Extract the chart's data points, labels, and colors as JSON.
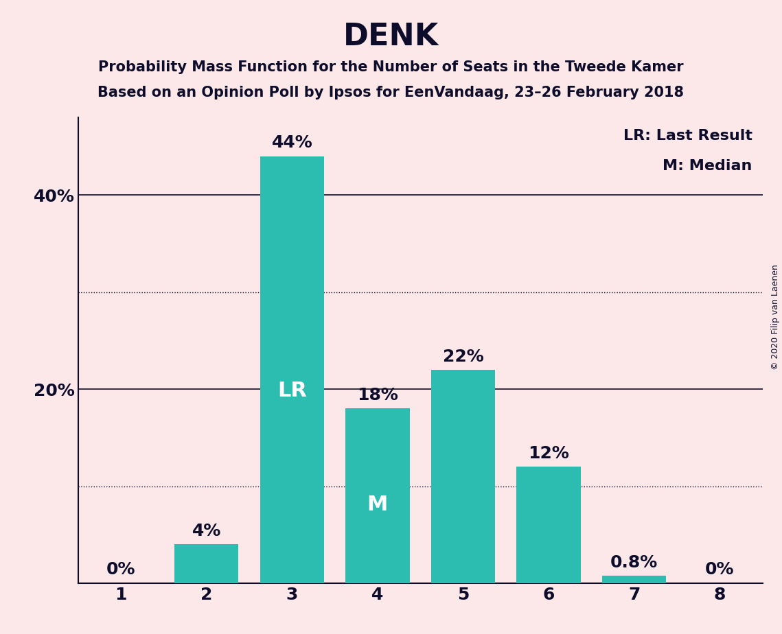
{
  "title": "DENK",
  "subtitle_line1": "Probability Mass Function for the Number of Seats in the Tweede Kamer",
  "subtitle_line2": "Based on an Opinion Poll by Ipsos for EenVandaag, 23–26 February 2018",
  "categories": [
    1,
    2,
    3,
    4,
    5,
    6,
    7,
    8
  ],
  "values": [
    0.0,
    4.0,
    44.0,
    18.0,
    22.0,
    12.0,
    0.8,
    0.0
  ],
  "bar_color": "#2dbdb0",
  "background_color": "#fce8e8",
  "text_color": "#0d0d2b",
  "bar_labels": [
    "0%",
    "4%",
    "44%",
    "18%",
    "22%",
    "12%",
    "0.8%",
    "0%"
  ],
  "bar_labels_inside": [
    "",
    "",
    "LR",
    "M",
    "",
    "",
    "",
    ""
  ],
  "ylim": [
    0,
    48
  ],
  "yticks": [
    20,
    40
  ],
  "ytick_labels": [
    "20%",
    "40%"
  ],
  "solid_gridlines": [
    20,
    40
  ],
  "dotted_gridlines": [
    10,
    30
  ],
  "legend_lr": "LR: Last Result",
  "legend_m": "M: Median",
  "copyright_text": "© 2020 Filip van Laenen",
  "title_fontsize": 32,
  "subtitle_fontsize": 15,
  "axis_label_fontsize": 18,
  "bar_label_fontsize": 18,
  "inside_label_fontsize": 22,
  "legend_fontsize": 16,
  "copyright_fontsize": 9
}
